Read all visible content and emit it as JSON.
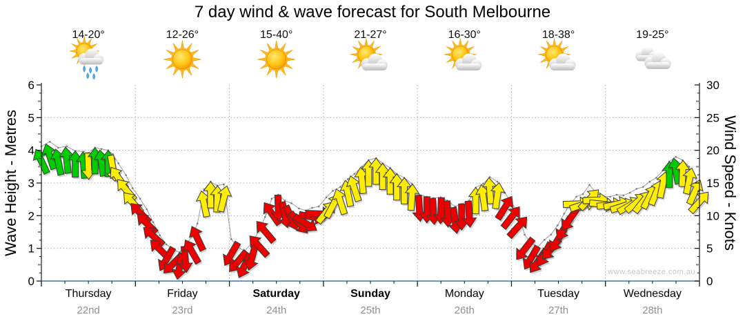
{
  "chart_data": {
    "type": "wind-arrow-timeseries",
    "title": "7 day wind & wave forecast for South Melbourne",
    "watermark": "www.seabreeze.com.au",
    "left_axis": {
      "title": "Wave Height - Metres",
      "min": 0,
      "max": 6,
      "tick_step": 1,
      "unit": "m"
    },
    "right_axis": {
      "title": "Wind Speed - Knots",
      "min": 0,
      "max": 30,
      "tick_step": 5,
      "unit": "knots"
    },
    "x_axis": {
      "unit": "days",
      "range": [
        0,
        7
      ],
      "grid": "dotted-at-day-boundaries"
    },
    "days": [
      {
        "name": "Thursday",
        "date": "22nd",
        "temps": "14-20°",
        "icon": "sun-cloud-rain",
        "weekend": false
      },
      {
        "name": "Friday",
        "date": "23rd",
        "temps": "12-26°",
        "icon": "sun",
        "weekend": false
      },
      {
        "name": "Saturday",
        "date": "24th",
        "temps": "15-40°",
        "icon": "sun",
        "weekend": true
      },
      {
        "name": "Sunday",
        "date": "25th",
        "temps": "21-27°",
        "icon": "sun-cloud",
        "weekend": true
      },
      {
        "name": "Monday",
        "date": "26th",
        "temps": "16-30°",
        "icon": "sun-cloud",
        "weekend": false
      },
      {
        "name": "Tuesday",
        "date": "27th",
        "temps": "18-38°",
        "icon": "sun-cloud",
        "weekend": false
      },
      {
        "name": "Wednesday",
        "date": "28th",
        "temps": "19-25°",
        "icon": "clouds",
        "weekend": false
      }
    ],
    "colors": {
      "g": "#00cc00",
      "y": "#ffee00",
      "r": "#ee0000",
      "grid": "#ababab",
      "axis": "#1a1a1a",
      "bottom_axis": "#4472a8",
      "connector": "#9b9b9b",
      "date_text": "#8f8f8f"
    },
    "series": {
      "name": "wind",
      "point_format": [
        "t_days",
        "knots",
        "color_key",
        "direction_deg_0up_cw"
      ],
      "points": [
        [
          0.0,
          20.6,
          "g",
          -25
        ],
        [
          0.09,
          21.3,
          "g",
          -18
        ],
        [
          0.18,
          20.4,
          "g",
          -12
        ],
        [
          0.27,
          20.6,
          "g",
          -6
        ],
        [
          0.36,
          19.9,
          "g",
          0
        ],
        [
          0.45,
          19.8,
          "g",
          -4
        ],
        [
          0.5,
          19.6,
          "y",
          178
        ],
        [
          0.57,
          20.4,
          "g",
          0
        ],
        [
          0.64,
          20.2,
          "g",
          -8
        ],
        [
          0.71,
          20.0,
          "g",
          0
        ],
        [
          0.76,
          19.4,
          "y",
          170
        ],
        [
          0.82,
          18.0,
          "y",
          -35
        ],
        [
          0.9,
          16.2,
          "y",
          -40
        ],
        [
          0.97,
          14.2,
          "y",
          -42
        ],
        [
          1.05,
          12.6,
          "r",
          -45
        ],
        [
          1.12,
          11.0,
          "r",
          -45
        ],
        [
          1.19,
          9.0,
          "r",
          -48
        ],
        [
          1.26,
          7.0,
          "r",
          -45
        ],
        [
          1.33,
          5.6,
          "r",
          -150
        ],
        [
          1.4,
          4.8,
          "r",
          -135
        ],
        [
          1.47,
          4.4,
          "r",
          -170
        ],
        [
          1.53,
          5.4,
          "r",
          175
        ],
        [
          1.6,
          6.8,
          "r",
          -30
        ],
        [
          1.66,
          8.8,
          "r",
          -25
        ],
        [
          1.73,
          14.0,
          "y",
          -12
        ],
        [
          1.8,
          15.2,
          "y",
          0
        ],
        [
          1.87,
          14.6,
          "y",
          2
        ],
        [
          1.94,
          14.8,
          "y",
          14
        ],
        [
          2.02,
          6.4,
          "r",
          -150
        ],
        [
          2.09,
          5.2,
          "r",
          -140
        ],
        [
          2.16,
          4.6,
          "r",
          -155
        ],
        [
          2.24,
          5.8,
          "r",
          -165
        ],
        [
          2.31,
          7.6,
          "r",
          -42
        ],
        [
          2.38,
          9.8,
          "r",
          -40
        ],
        [
          2.45,
          12.6,
          "r",
          -35
        ],
        [
          2.52,
          13.2,
          "r",
          178
        ],
        [
          2.59,
          12.3,
          "r",
          168
        ],
        [
          2.66,
          11.9,
          "r",
          155
        ],
        [
          2.74,
          11.1,
          "r",
          140
        ],
        [
          2.81,
          10.8,
          "r",
          122
        ],
        [
          2.88,
          11.2,
          "r",
          100
        ],
        [
          2.95,
          11.4,
          "r",
          92
        ],
        [
          3.03,
          12.8,
          "y",
          38
        ],
        [
          3.1,
          13.8,
          "y",
          28
        ],
        [
          3.18,
          14.4,
          "y",
          -18
        ],
        [
          3.26,
          15.6,
          "y",
          -12
        ],
        [
          3.33,
          16.4,
          "y",
          -18
        ],
        [
          3.41,
          17.5,
          "y",
          -6
        ],
        [
          3.48,
          18.5,
          "y",
          0
        ],
        [
          3.56,
          18.8,
          "y",
          0
        ],
        [
          3.63,
          18.0,
          "y",
          0
        ],
        [
          3.71,
          17.3,
          "y",
          0
        ],
        [
          3.78,
          16.4,
          "y",
          0
        ],
        [
          3.86,
          15.8,
          "y",
          0
        ],
        [
          3.94,
          14.9,
          "y",
          4
        ],
        [
          4.02,
          13.2,
          "r",
          176
        ],
        [
          4.1,
          12.9,
          "r",
          180
        ],
        [
          4.17,
          12.7,
          "r",
          176
        ],
        [
          4.25,
          12.8,
          "r",
          182
        ],
        [
          4.32,
          12.3,
          "r",
          178
        ],
        [
          4.4,
          11.4,
          "r",
          172
        ],
        [
          4.47,
          11.8,
          "r",
          180
        ],
        [
          4.55,
          12.3,
          "r",
          176
        ],
        [
          4.62,
          14.3,
          "y",
          0
        ],
        [
          4.7,
          14.9,
          "y",
          -8
        ],
        [
          4.77,
          15.9,
          "y",
          -4
        ],
        [
          4.85,
          15.2,
          "y",
          8
        ],
        [
          4.93,
          13.5,
          "r",
          32
        ],
        [
          5.0,
          12.0,
          "r",
          38
        ],
        [
          5.07,
          10.5,
          "r",
          42
        ],
        [
          5.14,
          7.1,
          "r",
          -142
        ],
        [
          5.21,
          5.8,
          "r",
          -150
        ],
        [
          5.28,
          5.2,
          "r",
          -145
        ],
        [
          5.35,
          6.3,
          "r",
          -152
        ],
        [
          5.42,
          7.1,
          "r",
          -140
        ],
        [
          5.49,
          8.5,
          "r",
          -148
        ],
        [
          5.56,
          10.3,
          "r",
          -150
        ],
        [
          5.62,
          11.7,
          "r",
          -145
        ],
        [
          5.69,
          12.9,
          "y",
          88
        ],
        [
          5.76,
          13.3,
          "y",
          72
        ],
        [
          5.83,
          14.7,
          "y",
          44
        ],
        [
          5.9,
          13.5,
          "y",
          88
        ],
        [
          5.97,
          13.0,
          "y",
          96
        ],
        [
          6.05,
          12.9,
          "y",
          84
        ],
        [
          6.12,
          13.2,
          "y",
          78
        ],
        [
          6.19,
          13.1,
          "y",
          72
        ],
        [
          6.26,
          13.5,
          "y",
          60
        ],
        [
          6.33,
          14.1,
          "y",
          50
        ],
        [
          6.4,
          14.4,
          "y",
          38
        ],
        [
          6.47,
          15.2,
          "y",
          28
        ],
        [
          6.54,
          15.8,
          "y",
          22
        ],
        [
          6.61,
          16.9,
          "y",
          12
        ],
        [
          6.68,
          18.3,
          "g",
          0
        ],
        [
          6.75,
          19.0,
          "g",
          -10
        ],
        [
          6.82,
          18.5,
          "y",
          2
        ],
        [
          6.89,
          17.5,
          "y",
          12
        ],
        [
          6.95,
          15.9,
          "y",
          24
        ],
        [
          7.0,
          14.3,
          "y",
          42
        ]
      ]
    }
  }
}
